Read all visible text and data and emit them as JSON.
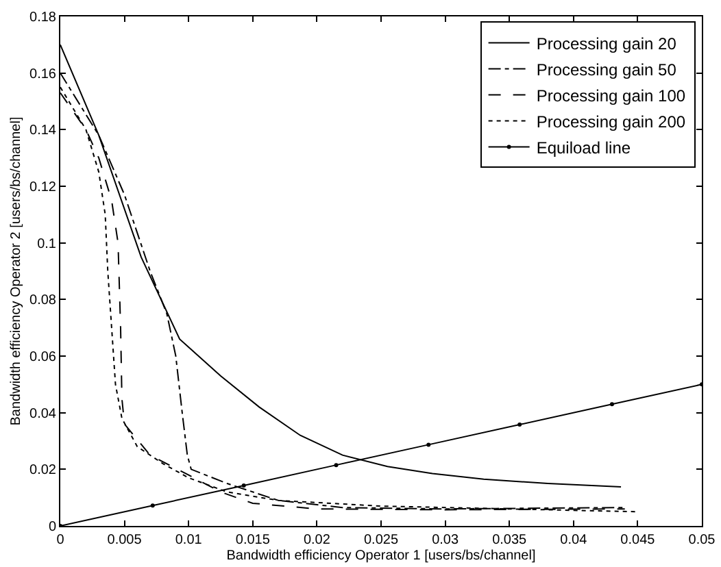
{
  "chart_data": {
    "type": "line",
    "xlabel": "Bandwidth efficiency Operator 1 [users/bs/channel]",
    "ylabel": "Bandwidth efficiency Operator 2 [users/bs/channel]",
    "xlim": [
      0,
      0.05
    ],
    "ylim": [
      0,
      0.18
    ],
    "xticks": [
      0,
      0.005,
      0.01,
      0.015,
      0.02,
      0.025,
      0.03,
      0.035,
      0.04,
      0.045,
      0.05
    ],
    "yticks": [
      0,
      0.02,
      0.04,
      0.06,
      0.08,
      0.1,
      0.12,
      0.14,
      0.16,
      0.18
    ],
    "grid": false,
    "legend": "top right",
    "series": [
      {
        "name": "Processing gain 20",
        "color": "#000000",
        "line_style": "solid",
        "marker": "none",
        "x": [
          0,
          0.003,
          0.0063,
          0.0093,
          0.0125,
          0.0155,
          0.0187,
          0.022,
          0.0255,
          0.029,
          0.033,
          0.038,
          0.0437
        ],
        "values": [
          0.17,
          0.138,
          0.095,
          0.066,
          0.053,
          0.042,
          0.032,
          0.025,
          0.021,
          0.0185,
          0.0165,
          0.015,
          0.0138
        ]
      },
      {
        "name": "Processing gain 50",
        "color": "#000000",
        "line_style": "dashdot",
        "marker": "none",
        "x": [
          0,
          0.003,
          0.005,
          0.007,
          0.0083,
          0.009,
          0.0095,
          0.0099,
          0.0102,
          0.013,
          0.017,
          0.022,
          0.03,
          0.044
        ],
        "values": [
          0.16,
          0.138,
          0.117,
          0.09,
          0.075,
          0.06,
          0.04,
          0.025,
          0.02,
          0.015,
          0.009,
          0.0065,
          0.006,
          0.0065
        ]
      },
      {
        "name": "Processing gain 100",
        "color": "#000000",
        "line_style": "dashed",
        "marker": "none",
        "x": [
          0,
          0.002,
          0.003,
          0.004,
          0.0045,
          0.0047,
          0.0048,
          0.005,
          0.007,
          0.01,
          0.0125,
          0.015,
          0.02,
          0.03,
          0.044
        ],
        "values": [
          0.153,
          0.14,
          0.13,
          0.115,
          0.1,
          0.07,
          0.045,
          0.036,
          0.025,
          0.018,
          0.012,
          0.008,
          0.006,
          0.0057,
          0.006
        ]
      },
      {
        "name": "Processing gain 200",
        "color": "#000000",
        "line_style": "dotted",
        "marker": "none",
        "x": [
          0,
          0.002,
          0.003,
          0.0035,
          0.0037,
          0.004,
          0.0043,
          0.0048,
          0.006,
          0.008,
          0.01,
          0.013,
          0.017,
          0.025,
          0.035,
          0.045
        ],
        "values": [
          0.155,
          0.14,
          0.125,
          0.11,
          0.09,
          0.07,
          0.05,
          0.038,
          0.028,
          0.022,
          0.017,
          0.012,
          0.009,
          0.007,
          0.006,
          0.005
        ]
      },
      {
        "name": "Equiload line",
        "color": "#000000",
        "line_style": "solid",
        "marker": "circle",
        "x": [
          0,
          0.0072,
          0.0143,
          0.0215,
          0.0287,
          0.0358,
          0.043,
          0.05
        ],
        "values": [
          0,
          0.0072,
          0.0143,
          0.0215,
          0.0287,
          0.0358,
          0.043,
          0.05
        ]
      }
    ]
  }
}
